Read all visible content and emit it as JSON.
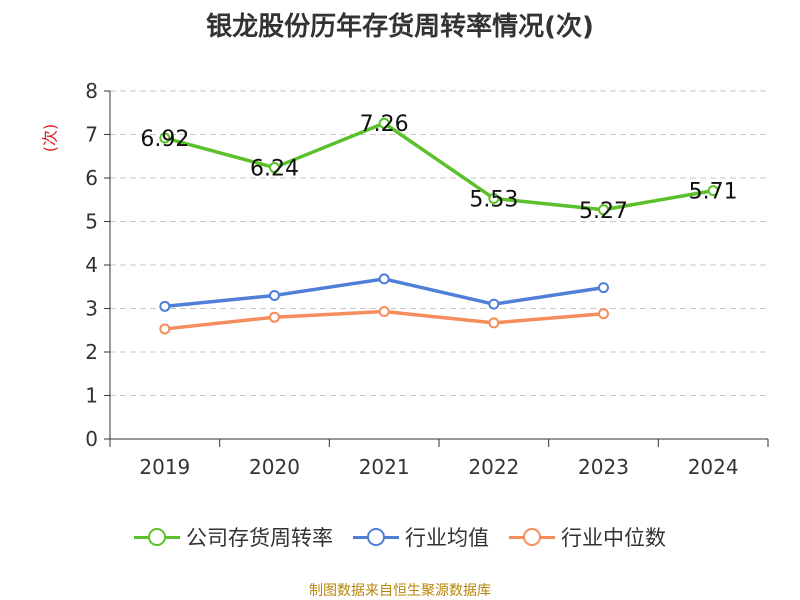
{
  "page": {
    "title": "银龙股份历年存货周转率情况(次)",
    "footer": "制图数据来自恒生聚源数据库"
  },
  "chart_data": {
    "type": "line",
    "title": "银龙股份历年存货周转率情况(次)",
    "ylabel": "(次)",
    "xlabel": "",
    "categories": [
      "2019",
      "2020",
      "2021",
      "2022",
      "2023",
      "2024"
    ],
    "ylim": [
      0,
      8
    ],
    "yticks": [
      "0",
      "1",
      "2",
      "3",
      "4",
      "5",
      "6",
      "7",
      "8"
    ],
    "grid": true,
    "legend_position": "bottom",
    "series": [
      {
        "name": "公司存货周转率",
        "color": "#5bc12b",
        "values": [
          6.92,
          6.24,
          7.26,
          5.53,
          5.27,
          5.71
        ],
        "data_labels": [
          "6.92",
          "6.24",
          "7.26",
          "5.53",
          "5.27",
          "5.71"
        ]
      },
      {
        "name": "行业均值",
        "color": "#4f7fd8",
        "values": [
          3.05,
          3.3,
          3.68,
          3.1,
          3.48,
          null
        ]
      },
      {
        "name": "行业中位数",
        "color": "#f58d5c",
        "values": [
          2.53,
          2.8,
          2.93,
          2.67,
          2.88,
          null
        ]
      }
    ]
  }
}
